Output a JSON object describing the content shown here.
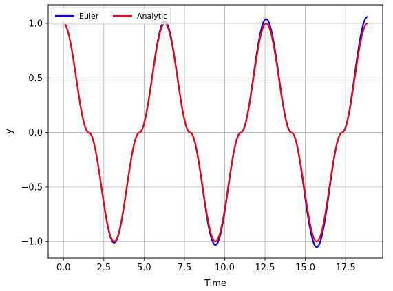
{
  "chart_data": {
    "type": "line",
    "xlabel": "Time",
    "ylabel": "y",
    "xlim": [
      -0.95,
      19.8
    ],
    "ylim": [
      -1.15,
      1.17
    ],
    "grid": true,
    "legend_position": "top-left",
    "x_ticks": [
      0.0,
      2.5,
      5.0,
      7.5,
      10.0,
      12.5,
      15.0,
      17.5
    ],
    "x_tick_labels": [
      "0.0",
      "2.5",
      "5.0",
      "7.5",
      "10.0",
      "12.5",
      "15.0",
      "17.5"
    ],
    "y_ticks": [
      1.0,
      0.5,
      0.0,
      -0.5,
      -1.0
    ],
    "y_tick_labels": [
      "1.0",
      "0.5",
      "0.0",
      "−0.5",
      "−1.0"
    ],
    "series": [
      {
        "name": "Euler",
        "color": "#0000ff",
        "x": [
          0.0,
          1.57,
          3.14,
          4.71,
          6.28,
          7.85,
          9.42,
          11.0,
          12.57,
          14.14,
          15.71,
          17.28,
          18.85
        ],
        "values": [
          1.0,
          0.0,
          -1.01,
          0.0,
          1.02,
          0.0,
          -1.03,
          0.0,
          1.04,
          0.0,
          -1.05,
          0.0,
          1.06
        ]
      },
      {
        "name": "Analytic",
        "color": "#ff0000",
        "x": [
          0.0,
          1.57,
          3.14,
          4.71,
          6.28,
          7.85,
          9.42,
          11.0,
          12.57,
          14.14,
          15.71,
          17.28,
          18.85
        ],
        "values": [
          1.0,
          0.0,
          -1.0,
          0.0,
          1.0,
          0.0,
          -1.0,
          0.0,
          1.0,
          0.0,
          -1.0,
          0.0,
          1.0
        ]
      }
    ]
  }
}
